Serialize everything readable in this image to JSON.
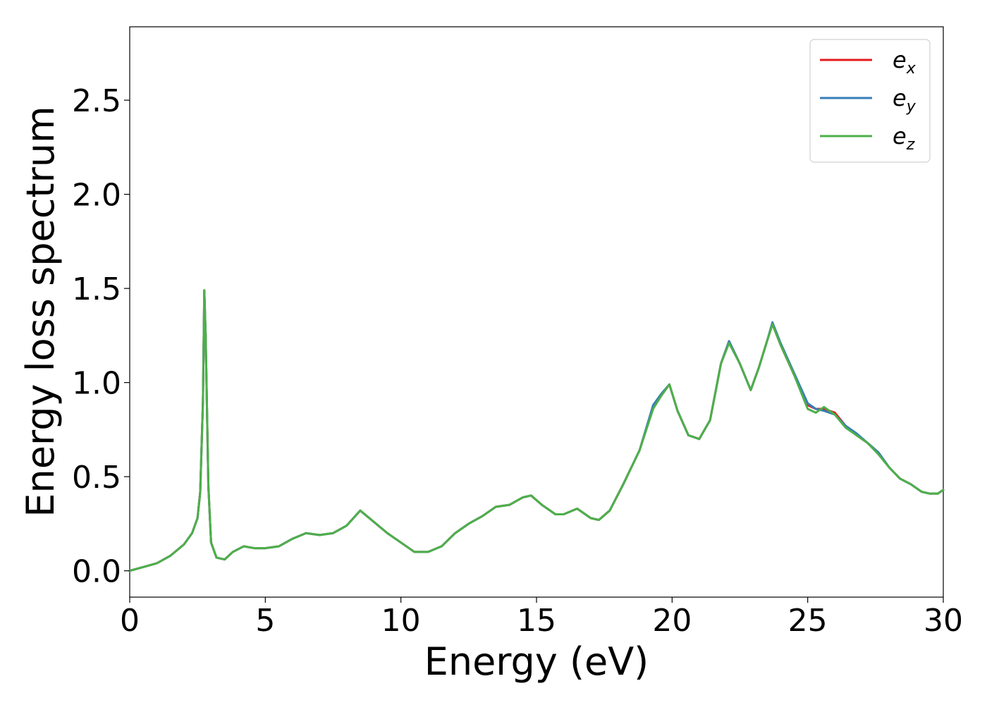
{
  "chart_data": {
    "type": "line",
    "title": "",
    "xlabel": "Energy (eV)",
    "ylabel": "Energy loss spectrum",
    "xlim": [
      0,
      30
    ],
    "ylim": [
      -0.14,
      2.89
    ],
    "x_ticks": [
      0,
      5,
      10,
      15,
      20,
      25,
      30
    ],
    "x_tick_labels": [
      "0",
      "5",
      "10",
      "15",
      "20",
      "25",
      "30"
    ],
    "y_ticks": [
      0.0,
      0.5,
      1.0,
      1.5,
      2.0,
      2.5
    ],
    "y_tick_labels": [
      "0.0",
      "0.5",
      "1.0",
      "1.5",
      "2.0",
      "2.5"
    ],
    "grid": false,
    "legend_position": "top-right",
    "series": [
      {
        "name": "e_x",
        "legend_base": "e",
        "legend_sub": "x",
        "color": "#e41a1c",
        "x": [
          0,
          0.5,
          1.0,
          1.5,
          2.0,
          2.3,
          2.5,
          2.6,
          2.7,
          2.75,
          2.8,
          2.9,
          3.0,
          3.2,
          3.5,
          3.8,
          4.2,
          4.6,
          5.0,
          5.5,
          6.0,
          6.5,
          7.0,
          7.5,
          8.0,
          8.5,
          9.0,
          9.5,
          10.0,
          10.5,
          11.0,
          11.5,
          12.0,
          12.5,
          13.0,
          13.5,
          14.0,
          14.5,
          14.8,
          15.2,
          15.7,
          16.0,
          16.5,
          17.0,
          17.3,
          17.7,
          18.2,
          18.8,
          19.3,
          19.6,
          19.9,
          20.2,
          20.6,
          21.0,
          21.4,
          21.8,
          22.1,
          22.5,
          22.9,
          23.2,
          23.5,
          23.7,
          24.0,
          24.5,
          25.0,
          25.3,
          25.6,
          26.0,
          26.4,
          26.8,
          27.2,
          27.6,
          28.0,
          28.4,
          28.8,
          29.2,
          29.5,
          29.8,
          30.0
        ],
        "values": [
          0.0,
          0.02,
          0.04,
          0.08,
          0.14,
          0.2,
          0.28,
          0.42,
          0.9,
          1.49,
          1.25,
          0.45,
          0.15,
          0.07,
          0.06,
          0.1,
          0.13,
          0.12,
          0.12,
          0.13,
          0.17,
          0.2,
          0.19,
          0.2,
          0.24,
          0.32,
          0.26,
          0.2,
          0.15,
          0.1,
          0.1,
          0.13,
          0.2,
          0.25,
          0.29,
          0.34,
          0.35,
          0.39,
          0.4,
          0.35,
          0.3,
          0.3,
          0.33,
          0.28,
          0.27,
          0.32,
          0.46,
          0.64,
          0.87,
          0.93,
          0.99,
          0.85,
          0.72,
          0.7,
          0.8,
          1.1,
          1.22,
          1.1,
          0.96,
          1.08,
          1.22,
          1.31,
          1.2,
          1.04,
          0.88,
          0.86,
          0.86,
          0.84,
          0.77,
          0.72,
          0.68,
          0.63,
          0.55,
          0.49,
          0.46,
          0.42,
          0.41,
          0.41,
          0.43
        ]
      },
      {
        "name": "e_y",
        "legend_base": "e",
        "legend_sub": "y",
        "color": "#377eb8",
        "x": [
          0,
          0.5,
          1.0,
          1.5,
          2.0,
          2.3,
          2.5,
          2.6,
          2.7,
          2.75,
          2.8,
          2.9,
          3.0,
          3.2,
          3.5,
          3.8,
          4.2,
          4.6,
          5.0,
          5.5,
          6.0,
          6.5,
          7.0,
          7.5,
          8.0,
          8.5,
          9.0,
          9.5,
          10.0,
          10.5,
          11.0,
          11.5,
          12.0,
          12.5,
          13.0,
          13.5,
          14.0,
          14.5,
          14.8,
          15.2,
          15.7,
          16.0,
          16.5,
          17.0,
          17.3,
          17.7,
          18.2,
          18.8,
          19.3,
          19.6,
          19.9,
          20.2,
          20.6,
          21.0,
          21.4,
          21.8,
          22.1,
          22.5,
          22.9,
          23.2,
          23.5,
          23.7,
          24.0,
          24.5,
          25.0,
          25.3,
          25.6,
          26.0,
          26.4,
          26.8,
          27.2,
          27.6,
          28.0,
          28.4,
          28.8,
          29.2,
          29.5,
          29.8,
          30.0
        ],
        "values": [
          0.0,
          0.02,
          0.04,
          0.08,
          0.14,
          0.2,
          0.28,
          0.42,
          0.9,
          1.49,
          1.25,
          0.45,
          0.15,
          0.07,
          0.06,
          0.1,
          0.13,
          0.12,
          0.12,
          0.13,
          0.17,
          0.2,
          0.19,
          0.2,
          0.24,
          0.32,
          0.26,
          0.2,
          0.15,
          0.1,
          0.1,
          0.13,
          0.2,
          0.25,
          0.29,
          0.34,
          0.35,
          0.39,
          0.4,
          0.35,
          0.3,
          0.3,
          0.33,
          0.28,
          0.27,
          0.32,
          0.46,
          0.64,
          0.88,
          0.94,
          0.99,
          0.85,
          0.72,
          0.7,
          0.8,
          1.1,
          1.22,
          1.1,
          0.96,
          1.08,
          1.22,
          1.32,
          1.21,
          1.05,
          0.89,
          0.86,
          0.85,
          0.83,
          0.77,
          0.73,
          0.68,
          0.63,
          0.55,
          0.49,
          0.46,
          0.42,
          0.41,
          0.41,
          0.43
        ]
      },
      {
        "name": "e_z",
        "legend_base": "e",
        "legend_sub": "z",
        "color": "#4daf4a",
        "x": [
          0,
          0.5,
          1.0,
          1.5,
          2.0,
          2.3,
          2.5,
          2.6,
          2.7,
          2.75,
          2.8,
          2.9,
          3.0,
          3.2,
          3.5,
          3.8,
          4.2,
          4.6,
          5.0,
          5.5,
          6.0,
          6.5,
          7.0,
          7.5,
          8.0,
          8.5,
          9.0,
          9.5,
          10.0,
          10.5,
          11.0,
          11.5,
          12.0,
          12.5,
          13.0,
          13.5,
          14.0,
          14.5,
          14.8,
          15.2,
          15.7,
          16.0,
          16.5,
          17.0,
          17.3,
          17.7,
          18.2,
          18.8,
          19.3,
          19.6,
          19.9,
          20.2,
          20.6,
          21.0,
          21.4,
          21.8,
          22.1,
          22.5,
          22.9,
          23.2,
          23.5,
          23.7,
          24.0,
          24.5,
          25.0,
          25.3,
          25.6,
          26.0,
          26.4,
          26.8,
          27.2,
          27.6,
          28.0,
          28.4,
          28.8,
          29.2,
          29.5,
          29.8,
          30.0
        ],
        "values": [
          0.0,
          0.02,
          0.04,
          0.08,
          0.14,
          0.2,
          0.28,
          0.42,
          0.9,
          1.49,
          1.25,
          0.45,
          0.15,
          0.07,
          0.06,
          0.1,
          0.13,
          0.12,
          0.12,
          0.13,
          0.17,
          0.2,
          0.19,
          0.2,
          0.24,
          0.32,
          0.26,
          0.2,
          0.15,
          0.1,
          0.1,
          0.13,
          0.2,
          0.25,
          0.29,
          0.34,
          0.35,
          0.39,
          0.4,
          0.35,
          0.3,
          0.3,
          0.33,
          0.28,
          0.27,
          0.32,
          0.46,
          0.64,
          0.86,
          0.93,
          0.99,
          0.85,
          0.72,
          0.7,
          0.8,
          1.1,
          1.21,
          1.1,
          0.96,
          1.08,
          1.22,
          1.31,
          1.2,
          1.04,
          0.86,
          0.84,
          0.87,
          0.83,
          0.76,
          0.72,
          0.68,
          0.62,
          0.55,
          0.49,
          0.46,
          0.42,
          0.41,
          0.41,
          0.43
        ]
      }
    ]
  }
}
